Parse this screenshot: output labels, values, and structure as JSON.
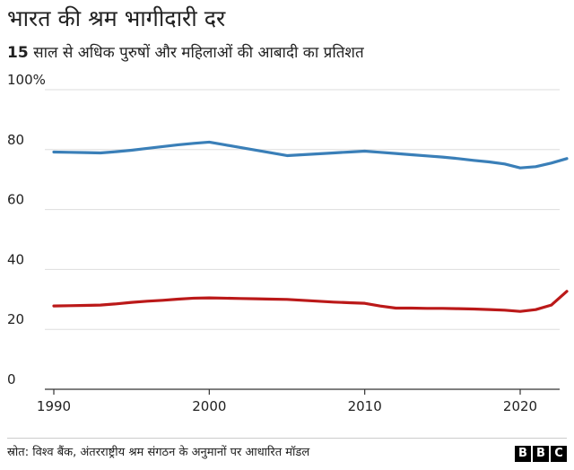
{
  "title": "भारत की श्रम भागीदारी दर",
  "subtitle": {
    "number": "15",
    "rest": " साल से अधिक पुरुषों और महिलाओं की आबादी का प्रतिशत"
  },
  "source": "स्रोत: विश्व बैंक, अंतरराष्ट्रीय श्रम संगठन के अनुमानों पर आधारित मॉडल",
  "logo": [
    "B",
    "B",
    "C"
  ],
  "chart_data": {
    "type": "line",
    "title": "भारत की श्रम भागीदारी दर",
    "subtitle": "15 साल से अधिक पुरुषों और महिलाओं की आबादी का प्रतिशत",
    "xlabel": "",
    "ylabel": "",
    "xlim": [
      1990,
      2023
    ],
    "ylim": [
      0,
      100
    ],
    "x_ticks": [
      1990,
      2000,
      2010,
      2020
    ],
    "y_ticks": [
      0,
      20,
      40,
      60,
      80,
      100
    ],
    "y_tick_labels": [
      "0",
      "20",
      "40",
      "60",
      "80",
      "100%"
    ],
    "grid": "horizontal",
    "legend": "none",
    "series": [
      {
        "color": "#3a7fb8",
        "points": [
          [
            1990,
            79.2
          ],
          [
            1991,
            79.1
          ],
          [
            1992,
            79.0
          ],
          [
            1993,
            78.9
          ],
          [
            1994,
            79.3
          ],
          [
            1995,
            79.8
          ],
          [
            1996,
            80.4
          ],
          [
            1997,
            81.0
          ],
          [
            1998,
            81.6
          ],
          [
            1999,
            82.1
          ],
          [
            2000,
            82.5
          ],
          [
            2001,
            81.6
          ],
          [
            2002,
            80.7
          ],
          [
            2003,
            79.8
          ],
          [
            2004,
            78.9
          ],
          [
            2005,
            78.0
          ],
          [
            2006,
            78.3
          ],
          [
            2007,
            78.6
          ],
          [
            2008,
            78.9
          ],
          [
            2009,
            79.2
          ],
          [
            2010,
            79.5
          ],
          [
            2011,
            79.1
          ],
          [
            2012,
            78.7
          ],
          [
            2013,
            78.3
          ],
          [
            2014,
            77.9
          ],
          [
            2015,
            77.5
          ],
          [
            2016,
            77.0
          ],
          [
            2017,
            76.4
          ],
          [
            2018,
            75.9
          ],
          [
            2019,
            75.2
          ],
          [
            2020,
            73.9
          ],
          [
            2021,
            74.3
          ],
          [
            2022,
            75.5
          ],
          [
            2023,
            77.0
          ]
        ]
      },
      {
        "color": "#bb1919",
        "points": [
          [
            1990,
            27.8
          ],
          [
            1991,
            27.9
          ],
          [
            1992,
            28.0
          ],
          [
            1993,
            28.1
          ],
          [
            1994,
            28.5
          ],
          [
            1995,
            29.0
          ],
          [
            1996,
            29.4
          ],
          [
            1997,
            29.7
          ],
          [
            1998,
            30.1
          ],
          [
            1999,
            30.4
          ],
          [
            2000,
            30.5
          ],
          [
            2001,
            30.4
          ],
          [
            2002,
            30.3
          ],
          [
            2003,
            30.2
          ],
          [
            2004,
            30.1
          ],
          [
            2005,
            30.0
          ],
          [
            2006,
            29.7
          ],
          [
            2007,
            29.4
          ],
          [
            2008,
            29.1
          ],
          [
            2009,
            28.9
          ],
          [
            2010,
            28.7
          ],
          [
            2011,
            27.8
          ],
          [
            2012,
            27.1
          ],
          [
            2013,
            27.1
          ],
          [
            2014,
            27.0
          ],
          [
            2015,
            27.0
          ],
          [
            2016,
            26.9
          ],
          [
            2017,
            26.8
          ],
          [
            2018,
            26.6
          ],
          [
            2019,
            26.4
          ],
          [
            2020,
            26.0
          ],
          [
            2021,
            26.6
          ],
          [
            2022,
            28.1
          ],
          [
            2023,
            32.7
          ]
        ]
      }
    ]
  }
}
